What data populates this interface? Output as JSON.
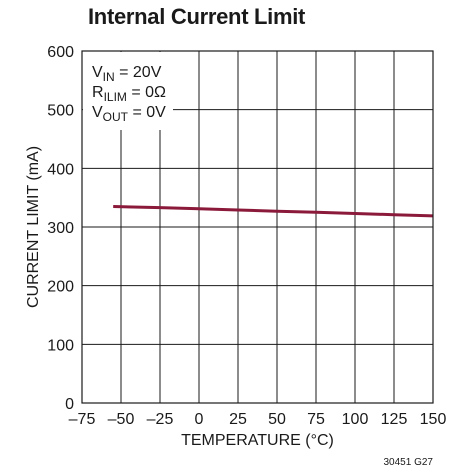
{
  "chart_data": {
    "type": "line",
    "title": "Internal Current Limit",
    "xlabel": "TEMPERATURE (°C)",
    "ylabel": "CURRENT LIMIT (mA)",
    "xlim": [
      -75,
      150
    ],
    "ylim": [
      0,
      600
    ],
    "x_ticks": [
      "–75",
      "–50",
      "–25",
      "0",
      "25",
      "50",
      "75",
      "100",
      "125",
      "150"
    ],
    "x_tick_values": [
      -75,
      -50,
      -25,
      0,
      25,
      50,
      75,
      100,
      125,
      150
    ],
    "y_ticks": [
      "0",
      "100",
      "200",
      "300",
      "400",
      "500",
      "600"
    ],
    "y_tick_values": [
      0,
      100,
      200,
      300,
      400,
      500,
      600
    ],
    "grid": true,
    "series": [
      {
        "color": "#8b1a3a",
        "x": [
          -55,
          -25,
          0,
          25,
          50,
          75,
          100,
          125,
          150
        ],
        "y": [
          335,
          333,
          331,
          329,
          327,
          325,
          323,
          321,
          319
        ]
      }
    ],
    "conditions": [
      {
        "main": "V",
        "sub": "IN",
        "rest": " = 20V"
      },
      {
        "main": "R",
        "sub": "ILIM",
        "rest": " = 0Ω"
      },
      {
        "main": "V",
        "sub": "OUT",
        "rest": " = 0V"
      }
    ],
    "figure_code": "30451 G27"
  }
}
